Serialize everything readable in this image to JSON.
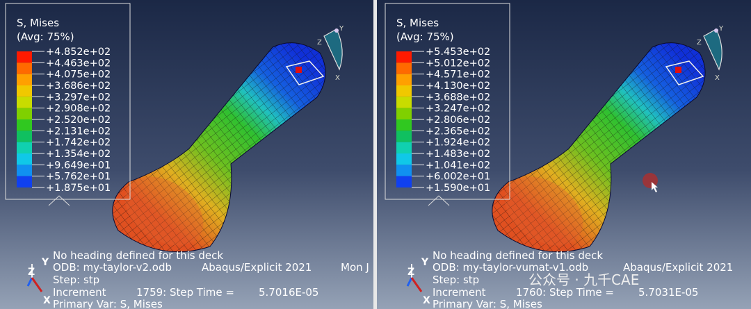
{
  "viewports": [
    {
      "legend": {
        "title": "S, Mises",
        "subtitle": "(Avg: 75%)",
        "values": [
          "+4.852e+02",
          "+4.463e+02",
          "+4.075e+02",
          "+3.686e+02",
          "+3.297e+02",
          "+2.908e+02",
          "+2.520e+02",
          "+2.131e+02",
          "+1.742e+02",
          "+1.354e+02",
          "+9.649e+01",
          "+5.762e+01",
          "+1.875e+01"
        ]
      },
      "info": {
        "heading": "No heading defined for this deck",
        "odb": "ODB: my-taylor-v2.odb",
        "solver": "Abaqus/Explicit 2021",
        "date": "Mon J",
        "step": "Step: stp",
        "increment": "Increment",
        "increment_value": "1759: Step Time =",
        "step_time": "5.7016E-05",
        "primary_var": "Primary Var: S, Mises"
      },
      "triad": {
        "x": "X",
        "y": "Y",
        "z": "Z"
      }
    },
    {
      "legend": {
        "title": "S, Mises",
        "subtitle": "(Avg: 75%)",
        "values": [
          "+5.453e+02",
          "+5.012e+02",
          "+4.571e+02",
          "+4.130e+02",
          "+3.688e+02",
          "+3.247e+02",
          "+2.806e+02",
          "+2.365e+02",
          "+1.924e+02",
          "+1.483e+02",
          "+1.041e+02",
          "+6.002e+01",
          "+1.590e+01"
        ]
      },
      "info": {
        "heading": "No heading defined for this deck",
        "odb": "ODB: my-taylor-vumat-v1.odb",
        "solver": "Abaqus/Explicit 2021",
        "step": "Step: stp",
        "increment": "Increment",
        "increment_value": "1760: Step Time =",
        "step_time": "5.7031E-05",
        "primary_var": "Primary Var: S, Mises"
      },
      "triad": {
        "x": "X",
        "y": "Y",
        "z": "Z"
      }
    }
  ],
  "watermark": "公众号 · 九千CAE"
}
